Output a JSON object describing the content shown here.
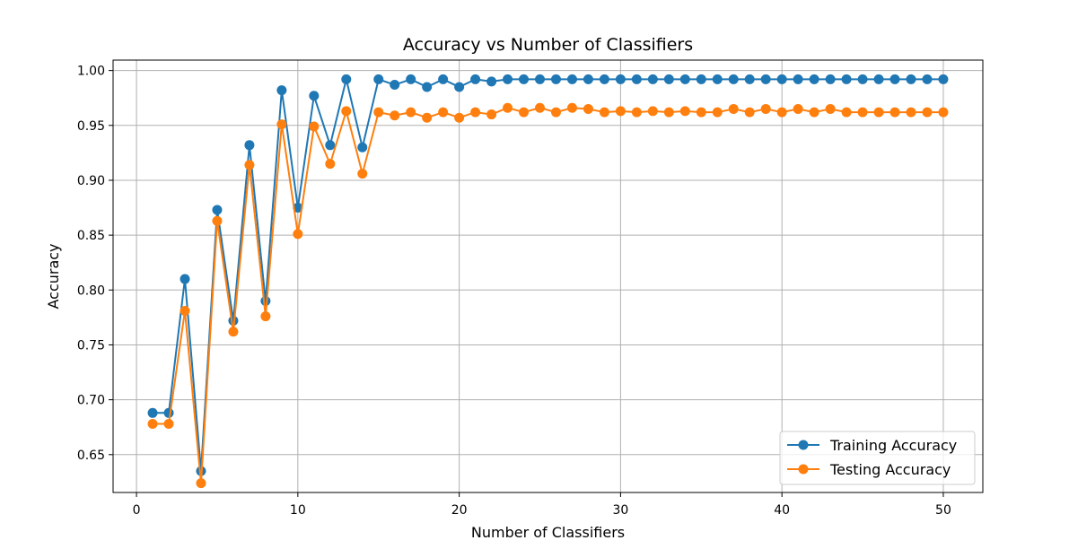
{
  "chart_data": {
    "type": "line",
    "title": "Accuracy vs Number of Classifiers",
    "xlabel": "Number of Classifiers",
    "ylabel": "Accuracy",
    "xlim": [
      -1.45,
      52.45
    ],
    "ylim": [
      0.6155,
      1.0095
    ],
    "xticks": [
      0,
      10,
      20,
      30,
      40,
      50
    ],
    "xtick_labels": [
      "0",
      "10",
      "20",
      "30",
      "40",
      "50"
    ],
    "yticks": [
      0.65,
      0.7,
      0.75,
      0.8,
      0.85,
      0.9,
      0.95,
      1.0
    ],
    "ytick_labels": [
      "0.65",
      "0.70",
      "0.75",
      "0.80",
      "0.85",
      "0.90",
      "0.95",
      "1.00"
    ],
    "grid": true,
    "legend_position": "bottom-right",
    "x": [
      1,
      2,
      3,
      4,
      5,
      6,
      7,
      8,
      9,
      10,
      11,
      12,
      13,
      14,
      15,
      16,
      17,
      18,
      19,
      20,
      21,
      22,
      23,
      24,
      25,
      26,
      27,
      28,
      29,
      30,
      31,
      32,
      33,
      34,
      35,
      36,
      37,
      38,
      39,
      40,
      41,
      42,
      43,
      44,
      45,
      46,
      47,
      48,
      49,
      50
    ],
    "series": [
      {
        "name": "Training Accuracy",
        "color": "#1f77b4",
        "values": [
          0.688,
          0.688,
          0.81,
          0.635,
          0.873,
          0.772,
          0.932,
          0.79,
          0.982,
          0.875,
          0.977,
          0.932,
          0.992,
          0.93,
          0.992,
          0.987,
          0.992,
          0.985,
          0.992,
          0.985,
          0.992,
          0.99,
          0.992,
          0.992,
          0.992,
          0.992,
          0.992,
          0.992,
          0.992,
          0.992,
          0.992,
          0.992,
          0.992,
          0.992,
          0.992,
          0.992,
          0.992,
          0.992,
          0.992,
          0.992,
          0.992,
          0.992,
          0.992,
          0.992,
          0.992,
          0.992,
          0.992,
          0.992,
          0.992,
          0.992
        ]
      },
      {
        "name": "Testing Accuracy",
        "color": "#ff7f0e",
        "values": [
          0.678,
          0.678,
          0.781,
          0.624,
          0.863,
          0.762,
          0.914,
          0.776,
          0.951,
          0.851,
          0.949,
          0.915,
          0.963,
          0.906,
          0.962,
          0.959,
          0.962,
          0.957,
          0.962,
          0.957,
          0.962,
          0.96,
          0.966,
          0.962,
          0.966,
          0.962,
          0.966,
          0.965,
          0.962,
          0.963,
          0.962,
          0.963,
          0.962,
          0.963,
          0.962,
          0.962,
          0.965,
          0.962,
          0.965,
          0.962,
          0.965,
          0.962,
          0.965,
          0.962,
          0.962,
          0.962,
          0.962,
          0.962,
          0.962,
          0.962
        ]
      }
    ]
  }
}
